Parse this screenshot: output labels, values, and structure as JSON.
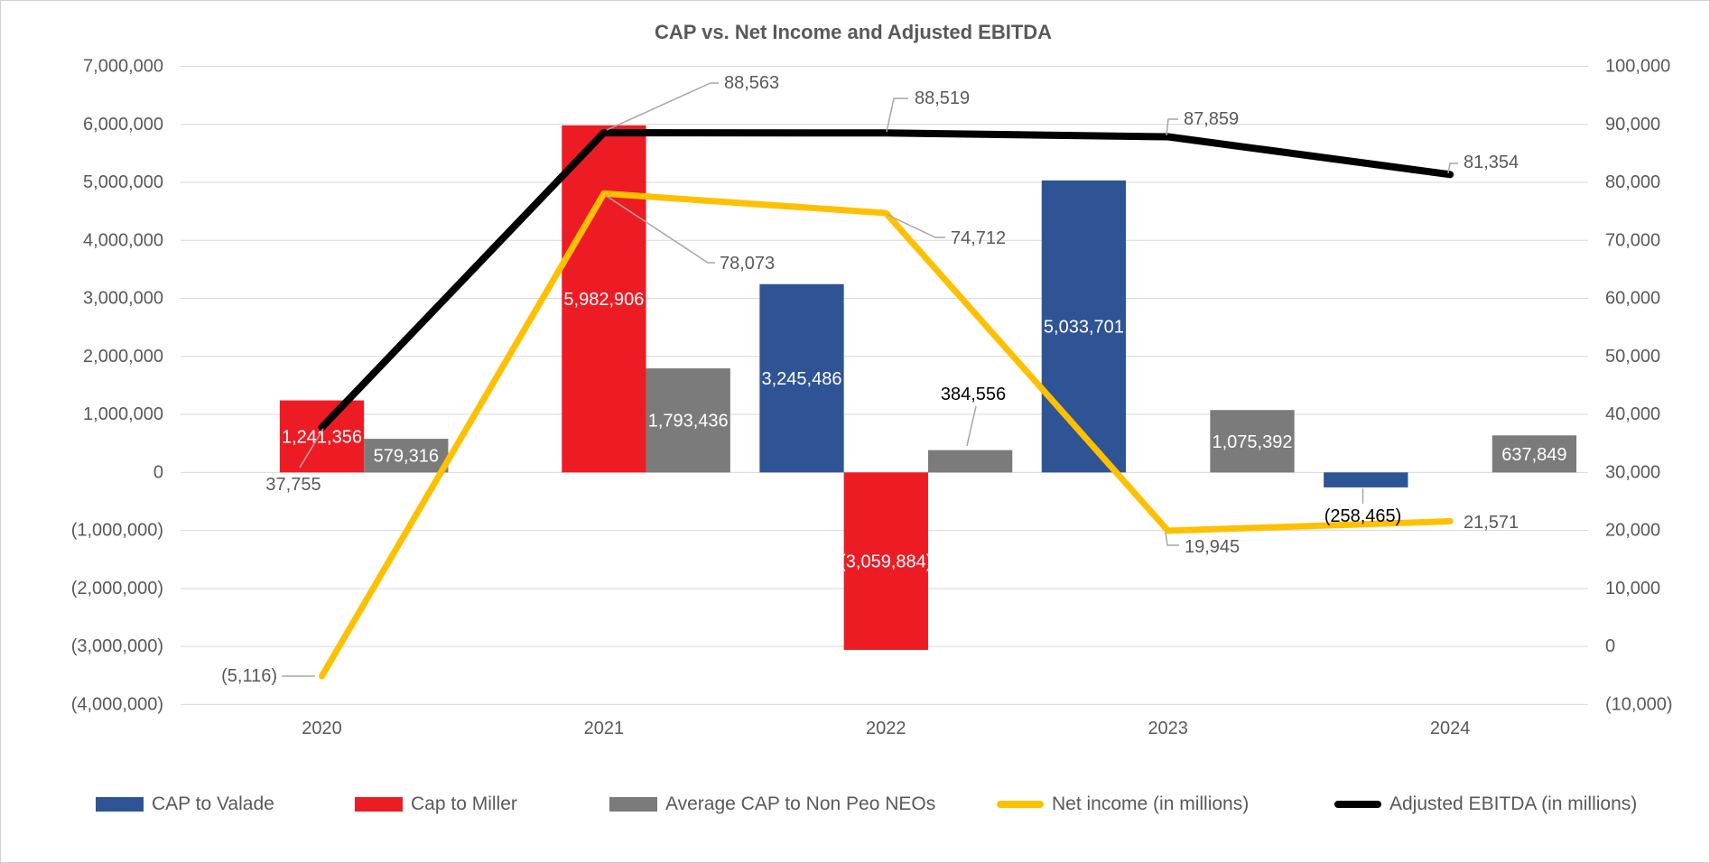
{
  "title": "CAP vs. Net Income and Adjusted EBITDA",
  "chart_data": {
    "type": "combo-bar-line",
    "categories": [
      "2020",
      "2021",
      "2022",
      "2023",
      "2024"
    ],
    "bar_series": [
      {
        "name": "CAP to Valade",
        "color": "#2F5496",
        "axis": "left",
        "values": [
          null,
          null,
          3245486,
          5033701,
          -258465
        ],
        "labels": [
          null,
          null,
          "3,245,486",
          "5,033,701",
          "(258,465)"
        ]
      },
      {
        "name": "Cap to Miller",
        "color": "#ED1C24",
        "axis": "left",
        "values": [
          1241356,
          5982906,
          -3059884,
          null,
          null
        ],
        "labels": [
          "1,241,356",
          "5,982,906",
          "(3,059,884)",
          null,
          null
        ]
      },
      {
        "name": "Average CAP to Non Peo NEOs",
        "color": "#7B7B7B",
        "axis": "left",
        "values": [
          579316,
          1793436,
          384556,
          1075392,
          637849
        ],
        "labels": [
          "579,316",
          "1,793,436",
          "384,556",
          "1,075,392",
          "637,849"
        ]
      }
    ],
    "line_series": [
      {
        "name": "Net income (in millions)",
        "color": "#FFC000",
        "axis": "right",
        "values": [
          -5116,
          78073,
          74712,
          19945,
          21571
        ],
        "labels": [
          "(5,116)",
          "78,073",
          "74,712",
          "19,945",
          "21,571"
        ]
      },
      {
        "name": "Adjusted EBITDA (in millions)",
        "color": "#000000",
        "axis": "right",
        "values": [
          37755,
          88563,
          88519,
          87859,
          81354
        ],
        "labels": [
          "37,755",
          "88,563",
          "88,519",
          "87,859",
          "81,354"
        ]
      }
    ],
    "left_axis": {
      "max": 7000000,
      "min": -4000000,
      "step": 1000000,
      "ticks": [
        "7,000,000",
        "6,000,000",
        "5,000,000",
        "4,000,000",
        "3,000,000",
        "2,000,000",
        "1,000,000",
        "0",
        "(1,000,000)",
        "(2,000,000)",
        "(3,000,000)",
        "(4,000,000)"
      ]
    },
    "right_axis": {
      "max": 100000,
      "min": -10000,
      "step": 10000,
      "ticks": [
        "100,000",
        "90,000",
        "80,000",
        "70,000",
        "60,000",
        "50,000",
        "40,000",
        "30,000",
        "20,000",
        "10,000",
        "0",
        "(10,000)"
      ]
    },
    "grid": true,
    "legend_position": "bottom"
  },
  "colors": {
    "grid": "#D9D9D9",
    "axis_text": "#595959",
    "leader": "#A6A6A6",
    "title_text": "#595959",
    "inside_bar_label": "#FFFFFF",
    "outside_bar_label": "#000000",
    "callout_label": "#595959"
  }
}
